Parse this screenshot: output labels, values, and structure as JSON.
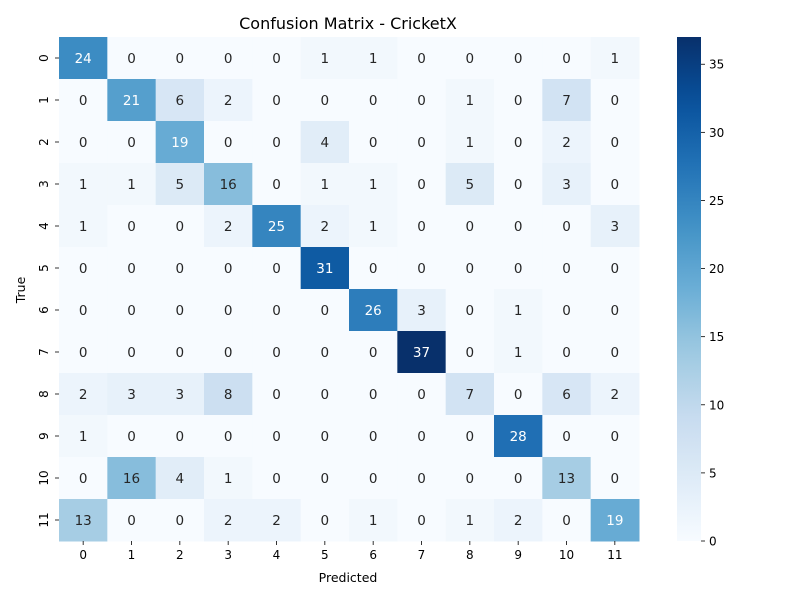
{
  "chart_data": {
    "type": "heatmap",
    "title": "Confusion Matrix - CricketX",
    "xlabel": "Predicted",
    "ylabel": "True",
    "x_categories": [
      "0",
      "1",
      "2",
      "3",
      "4",
      "5",
      "6",
      "7",
      "8",
      "9",
      "10",
      "11"
    ],
    "y_categories": [
      "0",
      "1",
      "2",
      "3",
      "4",
      "5",
      "6",
      "7",
      "8",
      "9",
      "10",
      "11"
    ],
    "values": [
      [
        24,
        0,
        0,
        0,
        0,
        1,
        1,
        0,
        0,
        0,
        0,
        1
      ],
      [
        0,
        21,
        6,
        2,
        0,
        0,
        0,
        0,
        1,
        0,
        7,
        0
      ],
      [
        0,
        0,
        19,
        0,
        0,
        4,
        0,
        0,
        1,
        0,
        2,
        0
      ],
      [
        1,
        1,
        5,
        16,
        0,
        1,
        1,
        0,
        5,
        0,
        3,
        0
      ],
      [
        1,
        0,
        0,
        2,
        25,
        2,
        1,
        0,
        0,
        0,
        0,
        3
      ],
      [
        0,
        0,
        0,
        0,
        0,
        31,
        0,
        0,
        0,
        0,
        0,
        0
      ],
      [
        0,
        0,
        0,
        0,
        0,
        0,
        26,
        3,
        0,
        1,
        0,
        0
      ],
      [
        0,
        0,
        0,
        0,
        0,
        0,
        0,
        37,
        0,
        1,
        0,
        0
      ],
      [
        2,
        3,
        3,
        8,
        0,
        0,
        0,
        0,
        7,
        0,
        6,
        2
      ],
      [
        1,
        0,
        0,
        0,
        0,
        0,
        0,
        0,
        0,
        28,
        0,
        0
      ],
      [
        0,
        16,
        4,
        1,
        0,
        0,
        0,
        0,
        0,
        0,
        13,
        0
      ],
      [
        13,
        0,
        0,
        2,
        2,
        0,
        1,
        0,
        1,
        2,
        0,
        19
      ]
    ],
    "colorbar": {
      "min": 0,
      "max": 37,
      "ticks": [
        0,
        5,
        10,
        15,
        20,
        25,
        30,
        35
      ],
      "colormap": "Blues",
      "color_low": "#f7fbff",
      "color_high": "#08306b"
    }
  }
}
